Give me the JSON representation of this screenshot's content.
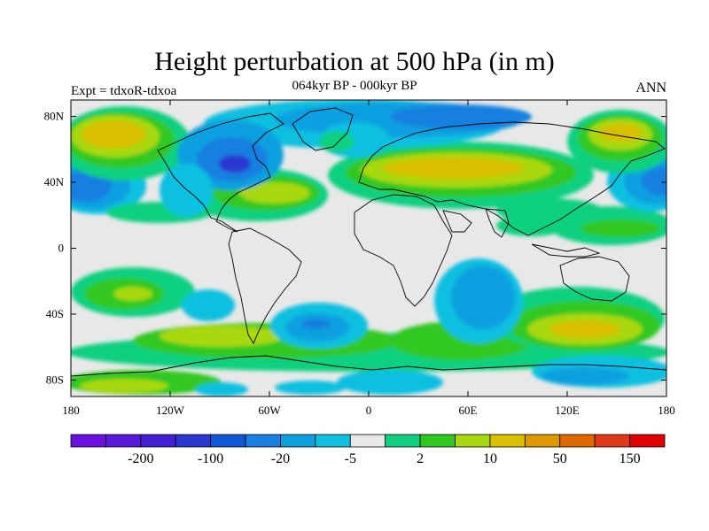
{
  "title": "Height perturbation at 500 hPa (in m)",
  "subtitle": "064kyr BP - 000kyr BP",
  "left_label": "Expt = tdxoR-tdxoa",
  "right_label": "ANN",
  "y_ticks": [
    {
      "lat": 80,
      "label": "80N"
    },
    {
      "lat": 40,
      "label": "40N"
    },
    {
      "lat": 0,
      "label": "0"
    },
    {
      "lat": -40,
      "label": "40S"
    },
    {
      "lat": -80,
      "label": "80S"
    }
  ],
  "x_ticks": [
    {
      "lon": -180,
      "label": "180"
    },
    {
      "lon": -120,
      "label": "120W"
    },
    {
      "lon": -60,
      "label": "60W"
    },
    {
      "lon": 0,
      "label": "0"
    },
    {
      "lon": 60,
      "label": "60E"
    },
    {
      "lon": 120,
      "label": "120E"
    },
    {
      "lon": 180,
      "label": "180"
    }
  ],
  "colorbar": {
    "colors": [
      "#6a10e0",
      "#5a18d8",
      "#4420d0",
      "#2a38d0",
      "#1058d8",
      "#1880e0",
      "#10a0e0",
      "#10c0e0",
      "#e8e8e8",
      "#10d080",
      "#30c820",
      "#a8d810",
      "#d8c000",
      "#e09800",
      "#e06800",
      "#e03818",
      "#e00000"
    ],
    "labels": [
      {
        "after_index": 1,
        "text": "-200"
      },
      {
        "after_index": 3,
        "text": "-100"
      },
      {
        "after_index": 5,
        "text": "-20"
      },
      {
        "after_index": 7,
        "text": "-5"
      },
      {
        "after_index": 9,
        "text": "2"
      },
      {
        "after_index": 11,
        "text": "10"
      },
      {
        "after_index": 13,
        "text": "50"
      },
      {
        "after_index": 15,
        "text": "150"
      }
    ]
  },
  "field_colors": {
    "neutral": "#e8e8e8",
    "cyan": "#10c0e0",
    "lightblue": "#10a0e0",
    "blue": "#1880e0",
    "darkblue": "#1058d8",
    "deepblue": "#2a38d0",
    "green": "#10d080",
    "lime": "#30c820",
    "yellowgreen": "#a8d810",
    "gold": "#d8c000",
    "orange": "#e09800"
  }
}
